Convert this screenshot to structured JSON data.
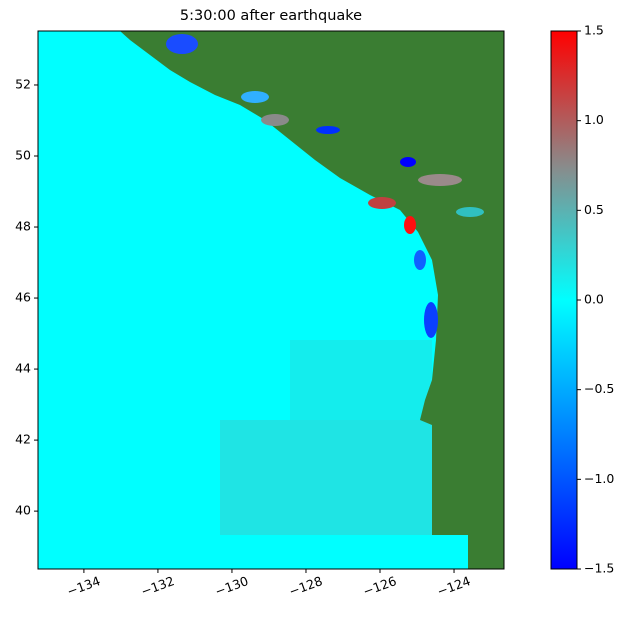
{
  "chart_data": {
    "type": "heatmap",
    "title": "5:30:00 after earthquake",
    "xlim": [
      -135.24,
      -122.65
    ],
    "xticks": [
      {
        "value": -134,
        "label": "−134"
      },
      {
        "value": -132,
        "label": "−132"
      },
      {
        "value": -130,
        "label": "−130"
      },
      {
        "value": -128,
        "label": "−128"
      },
      {
        "value": -126,
        "label": "−126"
      },
      {
        "value": -124,
        "label": "−124"
      }
    ],
    "ylim": [
      38.37,
      53.52
    ],
    "yticks": [
      40,
      42,
      44,
      46,
      48,
      50,
      52
    ],
    "colorbar": {
      "lim": [
        -1.5,
        1.5
      ],
      "ticks": [
        {
          "value": -1.5,
          "label": "−1.5"
        },
        {
          "value": -1.0,
          "label": "−1.0"
        },
        {
          "value": -0.5,
          "label": "−0.5"
        },
        {
          "value": 0,
          "label": "0.0"
        },
        0.5,
        {
          "value": 1.0,
          "label": "1.0"
        },
        1.5
      ],
      "colors": [
        "#0000ff",
        "#0080ff",
        "#00ffff",
        "#8a8a8a",
        "#ff0000"
      ]
    }
  }
}
